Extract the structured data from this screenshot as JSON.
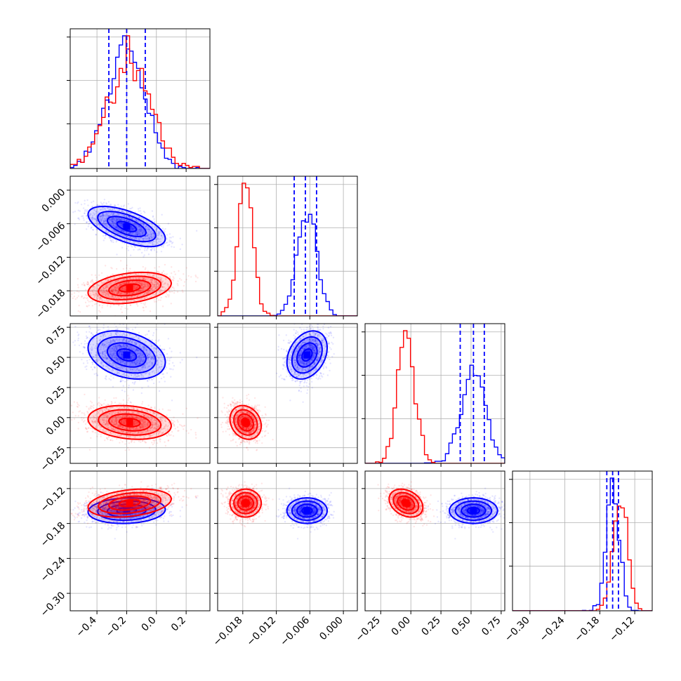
{
  "chart_data": {
    "type": "corner",
    "parameters": 4,
    "colors": {
      "series_a": "#0000ff",
      "series_b": "#ff0000",
      "quantile_lines": "#0000ff",
      "grid": "#b0b0b0"
    },
    "grid": true,
    "axes": [
      {
        "range": [
          -0.58,
          0.36
        ],
        "ticks": [
          -0.4,
          -0.2,
          0.0,
          0.2
        ],
        "tick_labels": [
          "−0.4",
          "−0.2",
          "0.0",
          "0.2"
        ]
      },
      {
        "range": [
          -0.0225,
          0.0025
        ],
        "ticks": [
          -0.018,
          -0.012,
          -0.006,
          0.0
        ],
        "tick_labels": [
          "−0.018",
          "−0.012",
          "−0.006",
          "0.000"
        ]
      },
      {
        "range": [
          -0.38,
          0.78
        ],
        "ticks": [
          -0.25,
          0.0,
          0.25,
          0.5,
          0.75
        ],
        "tick_labels": [
          "−0.25",
          "0.00",
          "0.25",
          "0.50",
          "0.75"
        ]
      },
      {
        "range": [
          -0.33,
          -0.09
        ],
        "ticks": [
          -0.3,
          -0.24,
          -0.18,
          -0.12
        ],
        "tick_labels": [
          "−0.30",
          "−0.24",
          "−0.18",
          "−0.12"
        ]
      }
    ],
    "series": [
      {
        "color": "#0000ff",
        "means": [
          -0.2,
          -0.0065,
          0.52,
          -0.158
        ],
        "stds": [
          0.13,
          0.0018,
          0.1,
          0.011
        ],
        "quantiles": [
          [
            -0.32,
            -0.2,
            -0.075
          ],
          [
            -0.0088,
            -0.0068,
            -0.0048
          ],
          [
            0.41,
            0.52,
            0.61
          ],
          [
            -0.168,
            -0.158,
            -0.148
          ]
        ],
        "correlations": [
          {
            "pair": [
              1,
              0
            ],
            "r": -0.6
          },
          {
            "pair": [
              2,
              0
            ],
            "r": -0.3
          },
          {
            "pair": [
              2,
              1
            ],
            "r": 0.3
          },
          {
            "pair": [
              3,
              0
            ],
            "r": 0.1
          },
          {
            "pair": [
              3,
              1
            ],
            "r": 0.0
          },
          {
            "pair": [
              3,
              2
            ],
            "r": 0.0
          }
        ]
      },
      {
        "color": "#ff0000",
        "means": [
          -0.18,
          -0.0175,
          -0.04,
          -0.145
        ],
        "stds": [
          0.14,
          0.0014,
          0.07,
          0.012
        ],
        "correlations": [
          {
            "pair": [
              1,
              0
            ],
            "r": 0.3
          },
          {
            "pair": [
              2,
              0
            ],
            "r": -0.2
          },
          {
            "pair": [
              2,
              1
            ],
            "r": -0.2
          },
          {
            "pair": [
              3,
              0
            ],
            "r": 0.3
          },
          {
            "pair": [
              3,
              1
            ],
            "r": 0.0
          },
          {
            "pair": [
              3,
              2
            ],
            "r": -0.3
          }
        ]
      }
    ],
    "histogram_bins": 20
  }
}
